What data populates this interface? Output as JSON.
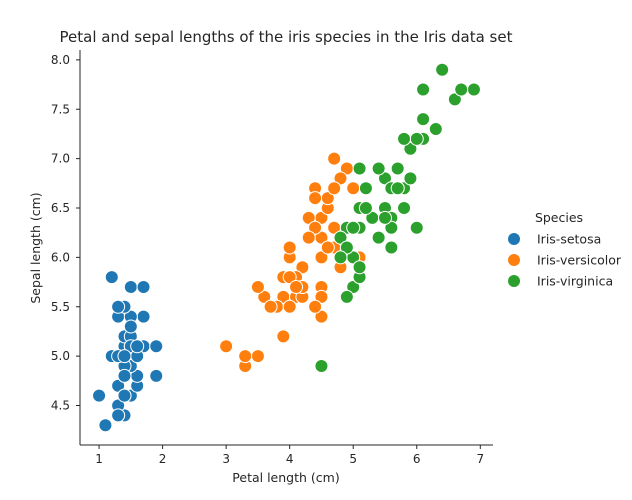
{
  "chart_data": {
    "type": "scatter",
    "title": "Petal and sepal lengths of the iris species in the Iris data set",
    "xlabel": "Petal length (cm)",
    "ylabel": "Sepal length (cm)",
    "xlim": [
      0.7,
      7.2
    ],
    "ylim": [
      4.1,
      8.1
    ],
    "xticks": [
      "1",
      "2",
      "3",
      "4",
      "5",
      "6",
      "7"
    ],
    "yticks": [
      "4.5",
      "5.0",
      "5.5",
      "6.0",
      "6.5",
      "7.0",
      "7.5",
      "8.0"
    ],
    "grid": false,
    "legend": {
      "title": "Species",
      "placement": "right"
    },
    "series": [
      {
        "name": "Iris-setosa",
        "color": "#1f77b4",
        "points": [
          [
            1.4,
            5.1
          ],
          [
            1.4,
            4.9
          ],
          [
            1.3,
            4.7
          ],
          [
            1.5,
            4.6
          ],
          [
            1.4,
            5.0
          ],
          [
            1.7,
            5.4
          ],
          [
            1.4,
            4.6
          ],
          [
            1.5,
            5.0
          ],
          [
            1.4,
            4.4
          ],
          [
            1.5,
            4.9
          ],
          [
            1.5,
            5.4
          ],
          [
            1.6,
            4.8
          ],
          [
            1.4,
            4.8
          ],
          [
            1.1,
            4.3
          ],
          [
            1.2,
            5.8
          ],
          [
            1.5,
            5.7
          ],
          [
            1.3,
            5.4
          ],
          [
            1.4,
            5.1
          ],
          [
            1.7,
            5.7
          ],
          [
            1.5,
            5.1
          ],
          [
            1.7,
            5.4
          ],
          [
            1.5,
            5.1
          ],
          [
            1.0,
            4.6
          ],
          [
            1.7,
            5.1
          ],
          [
            1.9,
            4.8
          ],
          [
            1.6,
            5.0
          ],
          [
            1.6,
            5.0
          ],
          [
            1.5,
            5.2
          ],
          [
            1.4,
            5.2
          ],
          [
            1.6,
            4.7
          ],
          [
            1.6,
            4.8
          ],
          [
            1.5,
            5.4
          ],
          [
            1.5,
            5.2
          ],
          [
            1.4,
            5.5
          ],
          [
            1.5,
            4.9
          ],
          [
            1.2,
            5.0
          ],
          [
            1.3,
            5.5
          ],
          [
            1.4,
            4.9
          ],
          [
            1.3,
            4.4
          ],
          [
            1.5,
            5.1
          ],
          [
            1.3,
            5.0
          ],
          [
            1.3,
            4.5
          ],
          [
            1.3,
            4.4
          ],
          [
            1.6,
            5.0
          ],
          [
            1.9,
            5.1
          ],
          [
            1.4,
            4.8
          ],
          [
            1.6,
            5.1
          ],
          [
            1.4,
            4.6
          ],
          [
            1.5,
            5.3
          ],
          [
            1.4,
            5.0
          ]
        ]
      },
      {
        "name": "Iris-versicolor",
        "color": "#ff7f0e",
        "points": [
          [
            4.7,
            7.0
          ],
          [
            4.5,
            6.4
          ],
          [
            4.9,
            6.9
          ],
          [
            4.0,
            5.5
          ],
          [
            4.6,
            6.5
          ],
          [
            4.5,
            5.7
          ],
          [
            4.7,
            6.3
          ],
          [
            3.3,
            4.9
          ],
          [
            4.6,
            6.6
          ],
          [
            3.9,
            5.2
          ],
          [
            3.5,
            5.0
          ],
          [
            4.2,
            5.9
          ],
          [
            4.0,
            6.0
          ],
          [
            4.7,
            6.1
          ],
          [
            3.6,
            5.6
          ],
          [
            4.4,
            6.7
          ],
          [
            4.5,
            5.6
          ],
          [
            4.1,
            5.8
          ],
          [
            4.5,
            6.2
          ],
          [
            3.9,
            5.6
          ],
          [
            4.8,
            5.9
          ],
          [
            4.0,
            6.1
          ],
          [
            4.9,
            6.3
          ],
          [
            4.7,
            6.1
          ],
          [
            4.3,
            6.4
          ],
          [
            4.4,
            6.6
          ],
          [
            4.8,
            6.8
          ],
          [
            5.0,
            6.7
          ],
          [
            4.5,
            6.0
          ],
          [
            3.5,
            5.7
          ],
          [
            3.8,
            5.5
          ],
          [
            3.7,
            5.5
          ],
          [
            3.9,
            5.8
          ],
          [
            5.1,
            6.0
          ],
          [
            4.5,
            5.4
          ],
          [
            4.5,
            6.0
          ],
          [
            4.7,
            6.7
          ],
          [
            4.4,
            6.3
          ],
          [
            4.1,
            5.6
          ],
          [
            4.0,
            5.5
          ],
          [
            4.4,
            5.5
          ],
          [
            4.6,
            6.1
          ],
          [
            4.0,
            5.8
          ],
          [
            3.3,
            5.0
          ],
          [
            4.2,
            5.6
          ],
          [
            4.2,
            5.7
          ],
          [
            4.2,
            5.7
          ],
          [
            4.3,
            6.2
          ],
          [
            3.0,
            5.1
          ],
          [
            4.1,
            5.7
          ]
        ]
      },
      {
        "name": "Iris-virginica",
        "color": "#2ca02c",
        "points": [
          [
            6.0,
            6.3
          ],
          [
            5.1,
            5.8
          ],
          [
            5.9,
            7.1
          ],
          [
            5.6,
            6.3
          ],
          [
            5.8,
            6.5
          ],
          [
            6.6,
            7.6
          ],
          [
            4.5,
            4.9
          ],
          [
            6.3,
            7.3
          ],
          [
            5.8,
            6.7
          ],
          [
            6.1,
            7.2
          ],
          [
            5.1,
            6.5
          ],
          [
            5.3,
            6.4
          ],
          [
            5.5,
            6.8
          ],
          [
            5.0,
            5.7
          ],
          [
            5.1,
            5.8
          ],
          [
            5.3,
            6.4
          ],
          [
            5.5,
            6.5
          ],
          [
            6.7,
            7.7
          ],
          [
            6.9,
            7.7
          ],
          [
            5.0,
            6.0
          ],
          [
            5.7,
            6.9
          ],
          [
            4.9,
            5.6
          ],
          [
            6.7,
            7.7
          ],
          [
            4.9,
            6.3
          ],
          [
            5.7,
            6.7
          ],
          [
            6.0,
            7.2
          ],
          [
            4.8,
            6.2
          ],
          [
            4.9,
            6.1
          ],
          [
            5.6,
            6.4
          ],
          [
            5.8,
            7.2
          ],
          [
            6.1,
            7.4
          ],
          [
            6.4,
            7.9
          ],
          [
            5.6,
            6.4
          ],
          [
            5.1,
            6.3
          ],
          [
            5.6,
            6.1
          ],
          [
            6.1,
            7.7
          ],
          [
            5.6,
            6.3
          ],
          [
            5.5,
            6.4
          ],
          [
            4.8,
            6.0
          ],
          [
            5.4,
            6.9
          ],
          [
            5.6,
            6.7
          ],
          [
            5.1,
            6.9
          ],
          [
            5.1,
            5.8
          ],
          [
            5.9,
            6.8
          ],
          [
            5.7,
            6.7
          ],
          [
            5.2,
            6.7
          ],
          [
            5.0,
            6.3
          ],
          [
            5.2,
            6.5
          ],
          [
            5.4,
            6.2
          ],
          [
            5.1,
            5.9
          ]
        ]
      }
    ]
  }
}
